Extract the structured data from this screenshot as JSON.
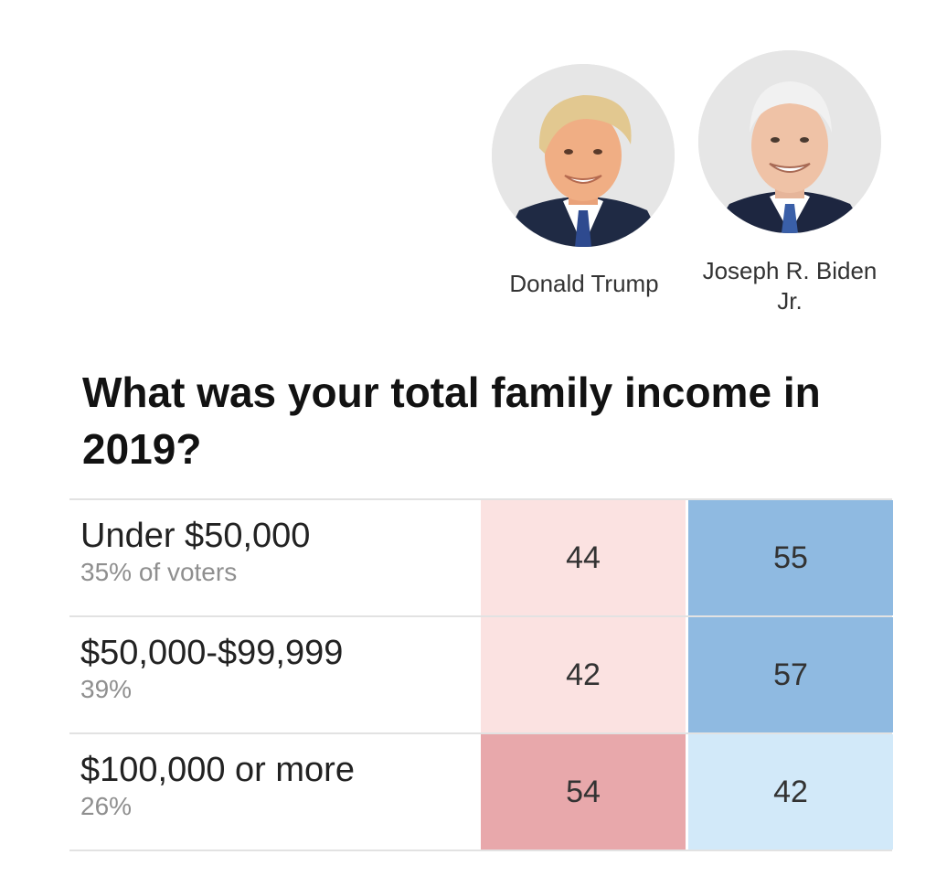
{
  "candidates": [
    {
      "name": "Donald Trump",
      "party": "rep"
    },
    {
      "name": "Joseph R. Biden Jr.",
      "party": "dem"
    }
  ],
  "colors": {
    "rep_light": "#fbe2e1",
    "rep_strong": "#e8a8ab",
    "dem_light": "#d2e9f9",
    "dem_strong": "#8fbae1",
    "avatar_bg": "#e6e6e6"
  },
  "chart_data": {
    "type": "table",
    "title": "What was your total family income in 2019?",
    "columns": [
      "Donald Trump",
      "Joseph R. Biden Jr."
    ],
    "rows": [
      {
        "label": "Under $50,000",
        "share": "35% of voters",
        "values": [
          44,
          55
        ]
      },
      {
        "label": "$50,000-$99,999",
        "share": "39%",
        "values": [
          42,
          57
        ]
      },
      {
        "label": "$100,000 or more",
        "share": "26%",
        "values": [
          54,
          42
        ]
      }
    ]
  }
}
